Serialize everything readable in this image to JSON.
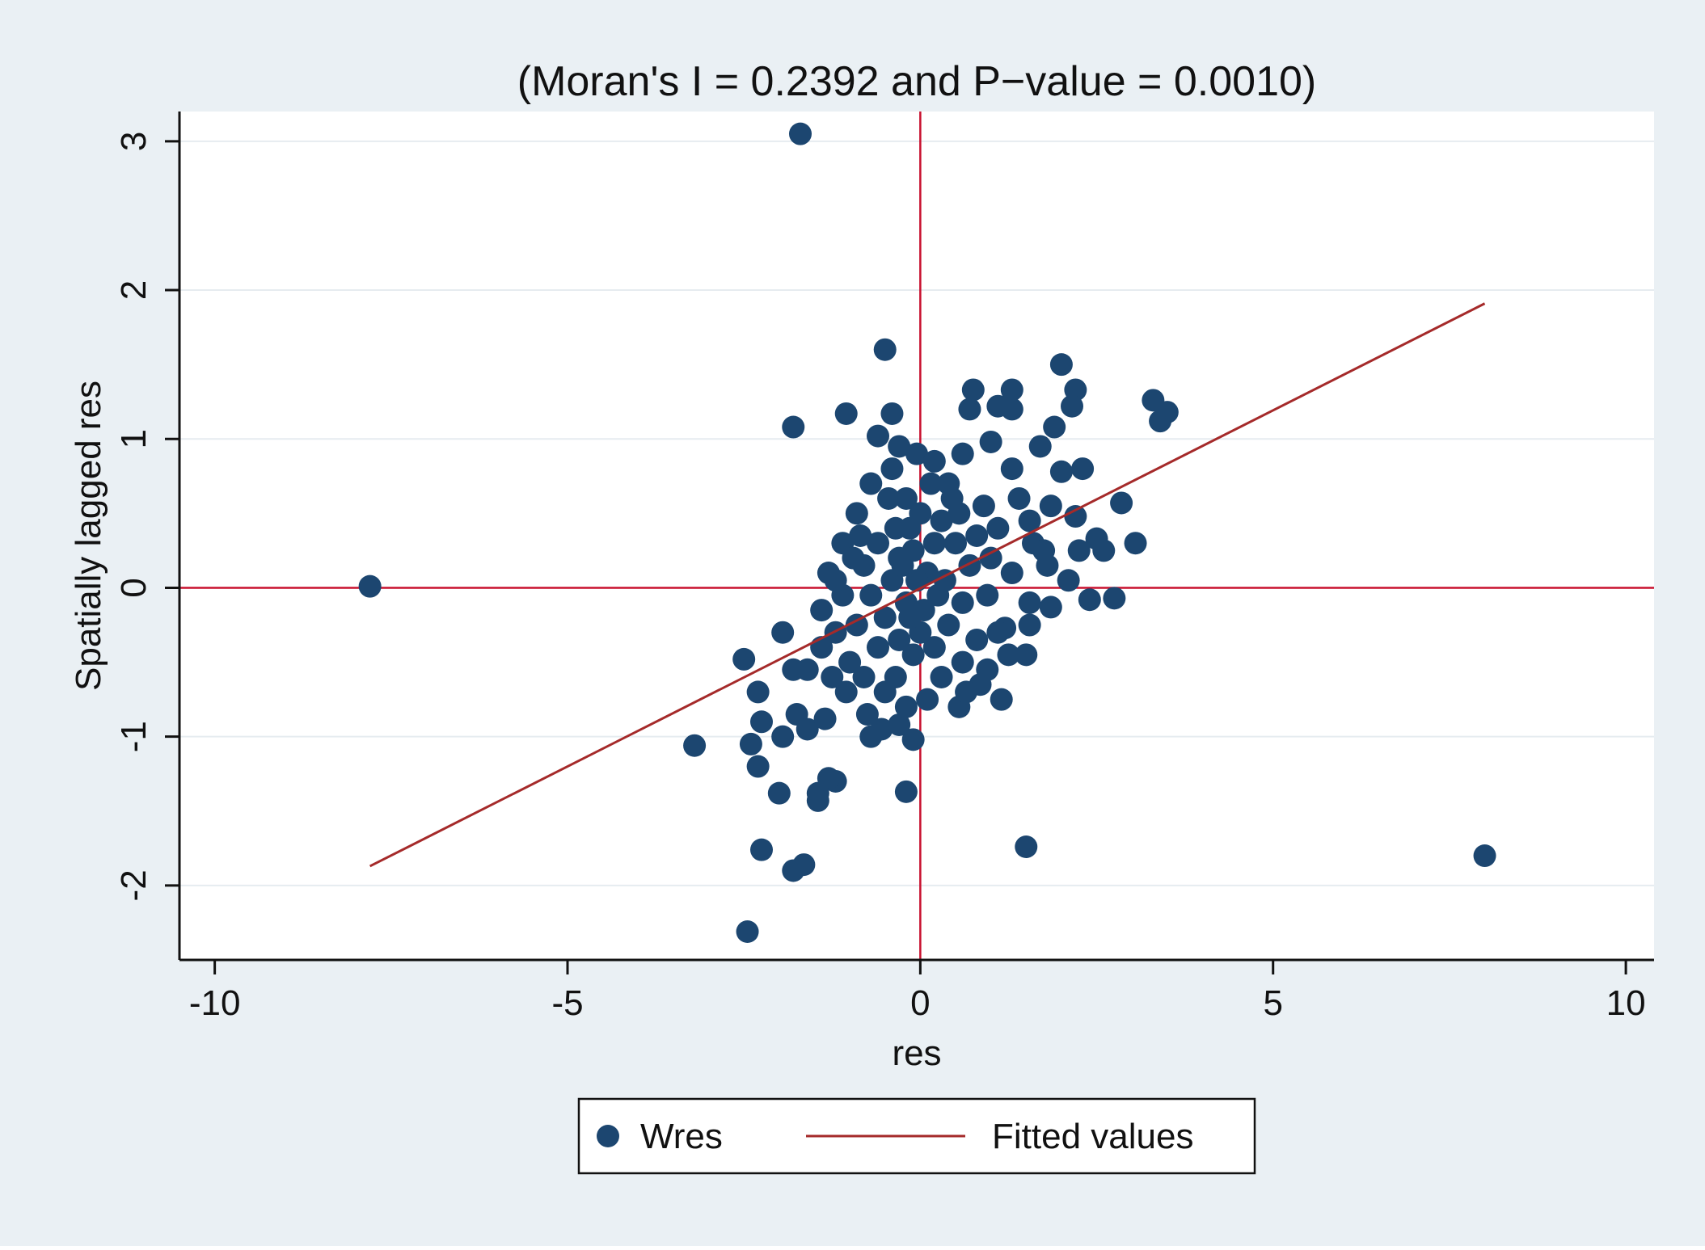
{
  "chart_data": {
    "type": "scatter",
    "title": "(Moran's I = 0.2392 and P−value = 0.0010)",
    "xlabel": "res",
    "ylabel": "Spatially lagged res",
    "xlim": [
      -10.5,
      10.4
    ],
    "ylim": [
      -2.5,
      3.2
    ],
    "x_ticks": [
      -10,
      -5,
      0,
      5,
      10
    ],
    "x_tick_labels": [
      "-10",
      "-5",
      "0",
      "5",
      "10"
    ],
    "y_ticks": [
      -2,
      -1,
      0,
      1,
      2,
      3
    ],
    "y_tick_labels": [
      "-2",
      "-1",
      "0",
      "1",
      "2",
      "3"
    ],
    "grid": "horizontal",
    "reference_lines": {
      "x": 0,
      "y": 0
    },
    "legend": {
      "position": "bottom-center",
      "entries": [
        {
          "label": "Wres",
          "kind": "marker"
        },
        {
          "label": "Fitted values",
          "kind": "line"
        }
      ]
    },
    "colors": {
      "outer_background": "#eaf0f4",
      "plot_background": "#ffffff",
      "marker": "#1c4670",
      "fitted_line": "#a52a2a",
      "reference_line": "#c8102e",
      "grid": "#e6ecf0"
    },
    "series": [
      {
        "name": "Fitted values",
        "type": "line",
        "x": [
          -7.8,
          8.0
        ],
        "y": [
          -1.87,
          1.91
        ]
      },
      {
        "name": "Wres",
        "type": "scatter",
        "points": [
          [
            -1.7,
            3.05
          ],
          [
            -7.8,
            0.01
          ],
          [
            8.0,
            -1.8
          ],
          [
            -0.5,
            1.6
          ],
          [
            2.0,
            1.5
          ],
          [
            -1.8,
            1.08
          ],
          [
            -1.05,
            1.17
          ],
          [
            -0.4,
            1.17
          ],
          [
            3.3,
            1.26
          ],
          [
            3.4,
            1.12
          ],
          [
            3.5,
            1.18
          ],
          [
            0.75,
            1.33
          ],
          [
            0.7,
            1.2
          ],
          [
            1.3,
            1.33
          ],
          [
            1.3,
            1.2
          ],
          [
            1.1,
            1.22
          ],
          [
            2.2,
            1.33
          ],
          [
            2.15,
            1.22
          ],
          [
            1.0,
            0.98
          ],
          [
            0.6,
            0.9
          ],
          [
            1.9,
            1.08
          ],
          [
            1.7,
            0.95
          ],
          [
            2.3,
            0.8
          ],
          [
            2.0,
            0.78
          ],
          [
            2.85,
            0.57
          ],
          [
            3.05,
            0.3
          ],
          [
            2.75,
            -0.07
          ],
          [
            2.4,
            -0.08
          ],
          [
            2.6,
            0.25
          ],
          [
            2.5,
            0.33
          ],
          [
            2.2,
            0.48
          ],
          [
            1.85,
            0.55
          ],
          [
            1.85,
            -0.13
          ],
          [
            1.55,
            -0.1
          ],
          [
            1.5,
            -0.45
          ],
          [
            1.15,
            -0.75
          ],
          [
            1.2,
            -0.27
          ],
          [
            0.85,
            -0.65
          ],
          [
            0.55,
            -0.8
          ],
          [
            1.5,
            -1.74
          ],
          [
            -0.2,
            -1.37
          ],
          [
            -0.1,
            -1.02
          ],
          [
            -0.3,
            -0.92
          ],
          [
            -0.7,
            -1.0
          ],
          [
            -1.2,
            -1.3
          ],
          [
            -1.3,
            -1.28
          ],
          [
            -1.45,
            -1.38
          ],
          [
            -1.45,
            -1.43
          ],
          [
            -2.0,
            -1.38
          ],
          [
            -2.4,
            -1.05
          ],
          [
            -3.2,
            -1.06
          ],
          [
            -2.5,
            -0.48
          ],
          [
            -2.3,
            -0.7
          ],
          [
            -2.25,
            -0.9
          ],
          [
            -2.3,
            -1.2
          ],
          [
            -2.25,
            -1.76
          ],
          [
            -1.8,
            -1.9
          ],
          [
            -1.65,
            -1.86
          ],
          [
            -2.45,
            -2.31
          ],
          [
            -1.95,
            -0.3
          ],
          [
            -1.8,
            -0.55
          ],
          [
            -1.75,
            -0.85
          ],
          [
            -1.95,
            -1.0
          ],
          [
            -1.6,
            -0.95
          ],
          [
            -1.35,
            -0.88
          ],
          [
            -0.05,
            0.9
          ],
          [
            0.2,
            0.85
          ],
          [
            -0.6,
            1.02
          ],
          [
            -0.3,
            0.95
          ],
          [
            0.4,
            0.7
          ],
          [
            0.9,
            0.55
          ],
          [
            1.1,
            0.4
          ],
          [
            1.4,
            0.6
          ],
          [
            1.6,
            0.3
          ],
          [
            1.8,
            0.15
          ],
          [
            2.1,
            0.05
          ],
          [
            1.3,
            0.1
          ],
          [
            1.0,
            0.2
          ],
          [
            0.95,
            -0.05
          ],
          [
            1.1,
            -0.3
          ],
          [
            0.8,
            -0.35
          ],
          [
            0.6,
            -0.5
          ],
          [
            0.3,
            -0.6
          ],
          [
            0.1,
            -0.75
          ],
          [
            -0.2,
            -0.8
          ],
          [
            -0.5,
            -0.7
          ],
          [
            -0.8,
            -0.6
          ],
          [
            -1.0,
            -0.5
          ],
          [
            -1.2,
            -0.3
          ],
          [
            -1.4,
            -0.15
          ],
          [
            -1.3,
            0.1
          ],
          [
            -1.1,
            0.3
          ],
          [
            -0.9,
            0.5
          ],
          [
            -0.7,
            0.7
          ],
          [
            -0.4,
            0.8
          ],
          [
            -0.2,
            0.6
          ],
          [
            0.0,
            0.5
          ],
          [
            0.3,
            0.45
          ],
          [
            0.5,
            0.3
          ],
          [
            0.7,
            0.15
          ],
          [
            0.6,
            -0.1
          ],
          [
            0.4,
            -0.25
          ],
          [
            0.2,
            -0.4
          ],
          [
            -0.1,
            -0.45
          ],
          [
            -0.3,
            -0.35
          ],
          [
            -0.5,
            -0.2
          ],
          [
            -0.7,
            -0.05
          ],
          [
            -0.8,
            0.15
          ],
          [
            -0.6,
            0.3
          ],
          [
            -0.35,
            0.4
          ],
          [
            -0.1,
            0.25
          ],
          [
            0.1,
            0.1
          ],
          [
            0.25,
            -0.05
          ],
          [
            0.05,
            -0.15
          ],
          [
            -0.2,
            -0.1
          ],
          [
            -0.4,
            0.05
          ],
          [
            -0.25,
            0.15
          ],
          [
            -0.05,
            0.05
          ],
          [
            -0.6,
            -0.4
          ],
          [
            -0.9,
            -0.25
          ],
          [
            -1.1,
            -0.05
          ],
          [
            -0.95,
            0.2
          ],
          [
            0.45,
            0.6
          ],
          [
            0.15,
            0.7
          ],
          [
            -0.15,
            0.4
          ],
          [
            -1.05,
            -0.7
          ],
          [
            -0.75,
            -0.85
          ],
          [
            -0.35,
            -0.6
          ],
          [
            0.0,
            -0.3
          ],
          [
            0.35,
            0.05
          ],
          [
            0.8,
            0.35
          ],
          [
            0.55,
            0.5
          ],
          [
            0.2,
            0.3
          ],
          [
            -0.45,
            0.6
          ],
          [
            -0.85,
            0.35
          ],
          [
            -1.2,
            0.05
          ],
          [
            -1.4,
            -0.4
          ],
          [
            -1.6,
            -0.55
          ],
          [
            -1.25,
            -0.6
          ],
          [
            1.3,
            0.8
          ],
          [
            1.55,
            0.45
          ],
          [
            1.75,
            0.25
          ],
          [
            2.25,
            0.25
          ],
          [
            0.65,
            -0.7
          ],
          [
            0.95,
            -0.55
          ],
          [
            1.25,
            -0.45
          ],
          [
            1.55,
            -0.25
          ],
          [
            -0.55,
            -0.95
          ],
          [
            -0.3,
            0.2
          ],
          [
            -0.15,
            -0.2
          ]
        ]
      }
    ]
  }
}
